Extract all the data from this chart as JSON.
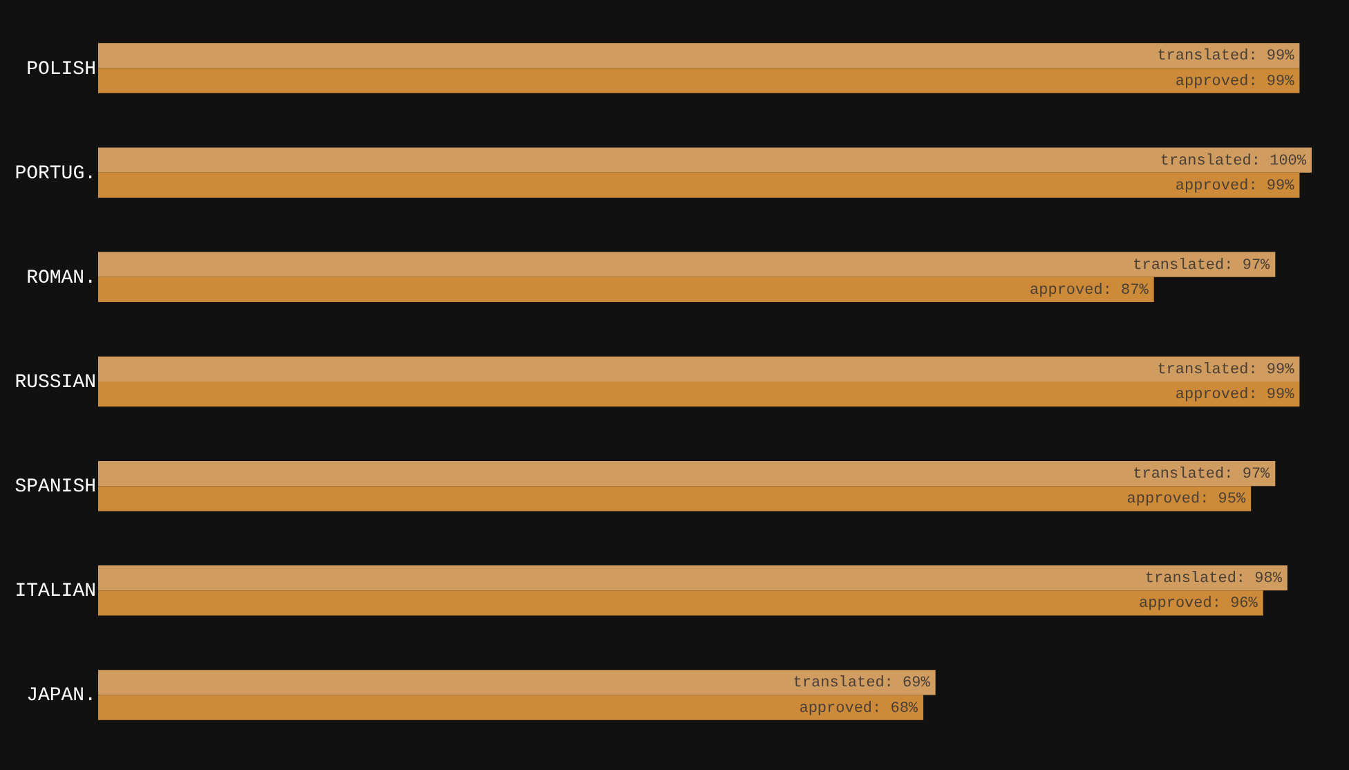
{
  "chart_data": {
    "type": "bar",
    "orientation": "horizontal",
    "categories": [
      "POLISH",
      "PORTUG.",
      "ROMAN.",
      "RUSSIAN",
      "SPANISH",
      "ITALIAN",
      "JAPAN."
    ],
    "series": [
      {
        "color": "#d09c60",
        "values": [
          99,
          100,
          97,
          99,
          97,
          98,
          69
        ],
        "value_labels": [
          "translated: 99%",
          "translated: 100%",
          "translated: 97%",
          "translated: 99%",
          "translated: 97%",
          "translated: 98%",
          "translated: 69%"
        ]
      },
      {
        "color": "#cd8a38",
        "values": [
          99,
          99,
          87,
          99,
          95,
          96,
          68
        ],
        "value_labels": [
          "approved: 99%",
          "approved: 99%",
          "approved: 87%",
          "approved: 99%",
          "approved: 95%",
          "approved: 96%",
          "approved: 68%"
        ]
      }
    ],
    "xlim": [
      0,
      100
    ],
    "tick_labels": "y",
    "legend": false
  }
}
